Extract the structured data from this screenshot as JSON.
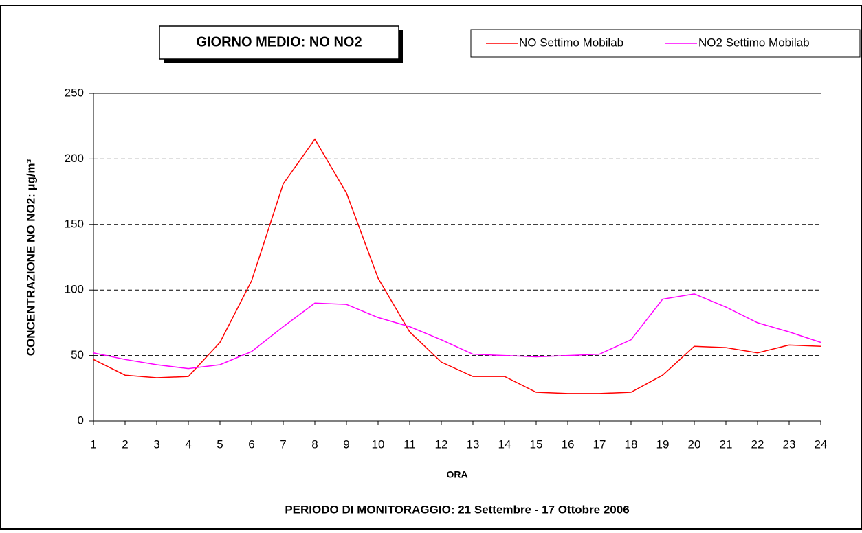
{
  "chart_data": {
    "type": "line",
    "title": "GIORNO MEDIO: NO NO2",
    "x_label": "ORA",
    "y_label": "CONCENTRAZIONE NO NO2: µg/m³",
    "footnote": "PERIODO DI MONITORAGGIO: 21 Settembre - 17 Ottobre 2006",
    "x": [
      1,
      2,
      3,
      4,
      5,
      6,
      7,
      8,
      9,
      10,
      11,
      12,
      13,
      14,
      15,
      16,
      17,
      18,
      19,
      20,
      21,
      22,
      23,
      24
    ],
    "xlim": [
      1,
      24
    ],
    "ylim": [
      0,
      250
    ],
    "yticks": [
      0,
      50,
      100,
      150,
      200,
      250
    ],
    "grid": true,
    "series": [
      {
        "name": "NO Settimo Mobilab",
        "color": "#ff0000",
        "values": [
          47,
          35,
          33,
          34,
          60,
          107,
          181,
          215,
          174,
          109,
          68,
          45,
          34,
          34,
          22,
          21,
          21,
          22,
          35,
          57,
          56,
          52,
          58,
          57
        ]
      },
      {
        "name": "NO2 Settimo Mobilab",
        "color": "#ff00ff",
        "values": [
          52,
          47,
          43,
          40,
          43,
          53,
          72,
          90,
          89,
          79,
          72,
          62,
          51,
          50,
          49,
          50,
          51,
          62,
          93,
          97,
          87,
          75,
          68,
          60
        ]
      }
    ]
  }
}
